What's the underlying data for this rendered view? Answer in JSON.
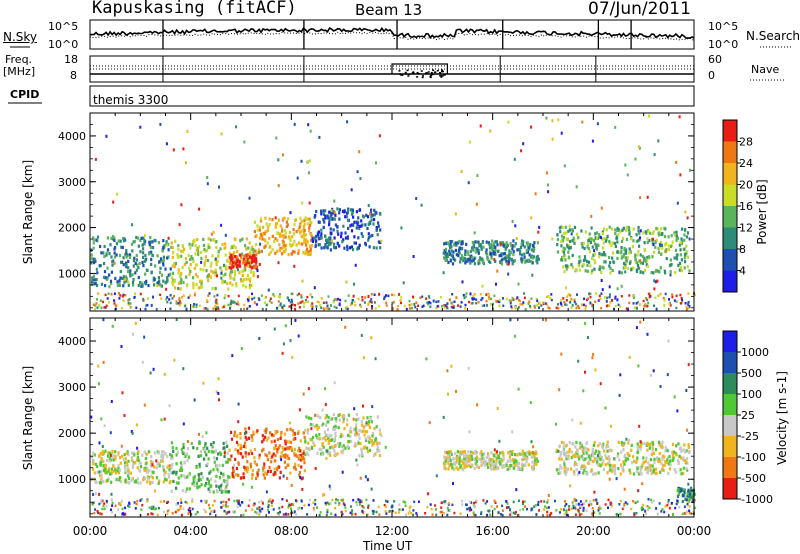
{
  "header": {
    "site": "Kapuskasing (fitACF)",
    "beam": "Beam 13",
    "date": "07/Jun/2011"
  },
  "noise_panel": {
    "left_label": "N.Sky",
    "right_label": "N.Search",
    "left_ticks": [
      "10^5",
      "10^0"
    ],
    "right_ticks": [
      "10^5",
      "10^0"
    ]
  },
  "freq_panel": {
    "left_label_line1": "Freq.",
    "left_label_line2": "[MHz]",
    "right_label": "Nave",
    "left_ticks": [
      "18",
      "8"
    ],
    "right_ticks": [
      "60",
      "0"
    ]
  },
  "cpid": {
    "label": "CPID",
    "value": "themis 3300"
  },
  "time_axis": {
    "label": "Time UT",
    "ticks": [
      "00:00",
      "04:00",
      "08:00",
      "12:00",
      "16:00",
      "20:00",
      "00:00"
    ],
    "range_hours": [
      0,
      24
    ]
  },
  "range_axis": {
    "label": "Slant Range [km]",
    "ticks": [
      "1000",
      "2000",
      "3000",
      "4000"
    ],
    "range_km": [
      180,
      4500
    ]
  },
  "power_scale": {
    "label": "Power [dB]",
    "ticks": [
      "4",
      "8",
      "12",
      "16",
      "20",
      "24",
      "28"
    ],
    "colors": [
      "#1e1ee6",
      "#1e50b4",
      "#2d8c78",
      "#5ab45a",
      "#c8dc28",
      "#f0b41e",
      "#f07814",
      "#e61e14"
    ]
  },
  "velocity_scale": {
    "label": "Velocity [m s-1]",
    "ticks": [
      "1000",
      "500",
      "100",
      "25",
      "-25",
      "-100",
      "-500",
      "-1000"
    ],
    "colors": [
      "#1e1ee6",
      "#1e50b4",
      "#2d8c5a",
      "#50c832",
      "#c8c8c8",
      "#f0b41e",
      "#f07814",
      "#e61e14"
    ]
  },
  "chart_data": {
    "type": "heatmap",
    "x_label": "Time UT",
    "y_label": "Slant Range [km]",
    "xlim_hours": [
      0,
      24
    ],
    "ylim_km": [
      180,
      4500
    ],
    "power_regions": [
      {
        "t0": 0.0,
        "t1": 3.2,
        "r0": 700,
        "r1": 1800,
        "level": 2
      },
      {
        "t0": 3.2,
        "t1": 6.5,
        "r0": 650,
        "r1": 1750,
        "level": 4
      },
      {
        "t0": 5.5,
        "t1": 6.6,
        "r0": 1100,
        "r1": 1400,
        "level": 7
      },
      {
        "t0": 6.5,
        "t1": 8.8,
        "r0": 1400,
        "r1": 2200,
        "level": 5
      },
      {
        "t0": 8.8,
        "t1": 11.5,
        "r0": 1500,
        "r1": 2400,
        "level": 1
      },
      {
        "t0": 14.0,
        "t1": 17.8,
        "r0": 1200,
        "r1": 1700,
        "level": 2
      },
      {
        "t0": 18.5,
        "t1": 23.8,
        "r0": 1000,
        "r1": 2000,
        "level": 3
      }
    ],
    "velocity_regions": [
      {
        "t0": 0.0,
        "t1": 3.2,
        "r0": 900,
        "r1": 1600,
        "level": 4
      },
      {
        "t0": 3.2,
        "t1": 5.5,
        "r0": 700,
        "r1": 1800,
        "level": 3
      },
      {
        "t0": 5.5,
        "t1": 8.5,
        "r0": 1000,
        "r1": 2100,
        "level": 6
      },
      {
        "t0": 8.5,
        "t1": 11.5,
        "r0": 1500,
        "r1": 2400,
        "level": 4
      },
      {
        "t0": 14.0,
        "t1": 17.8,
        "r0": 1200,
        "r1": 1600,
        "level": 4
      },
      {
        "t0": 18.5,
        "t1": 23.8,
        "r0": 1100,
        "r1": 1800,
        "level": 4
      },
      {
        "t0": 23.3,
        "t1": 24.0,
        "r0": 500,
        "r1": 800,
        "level": 2
      }
    ]
  }
}
